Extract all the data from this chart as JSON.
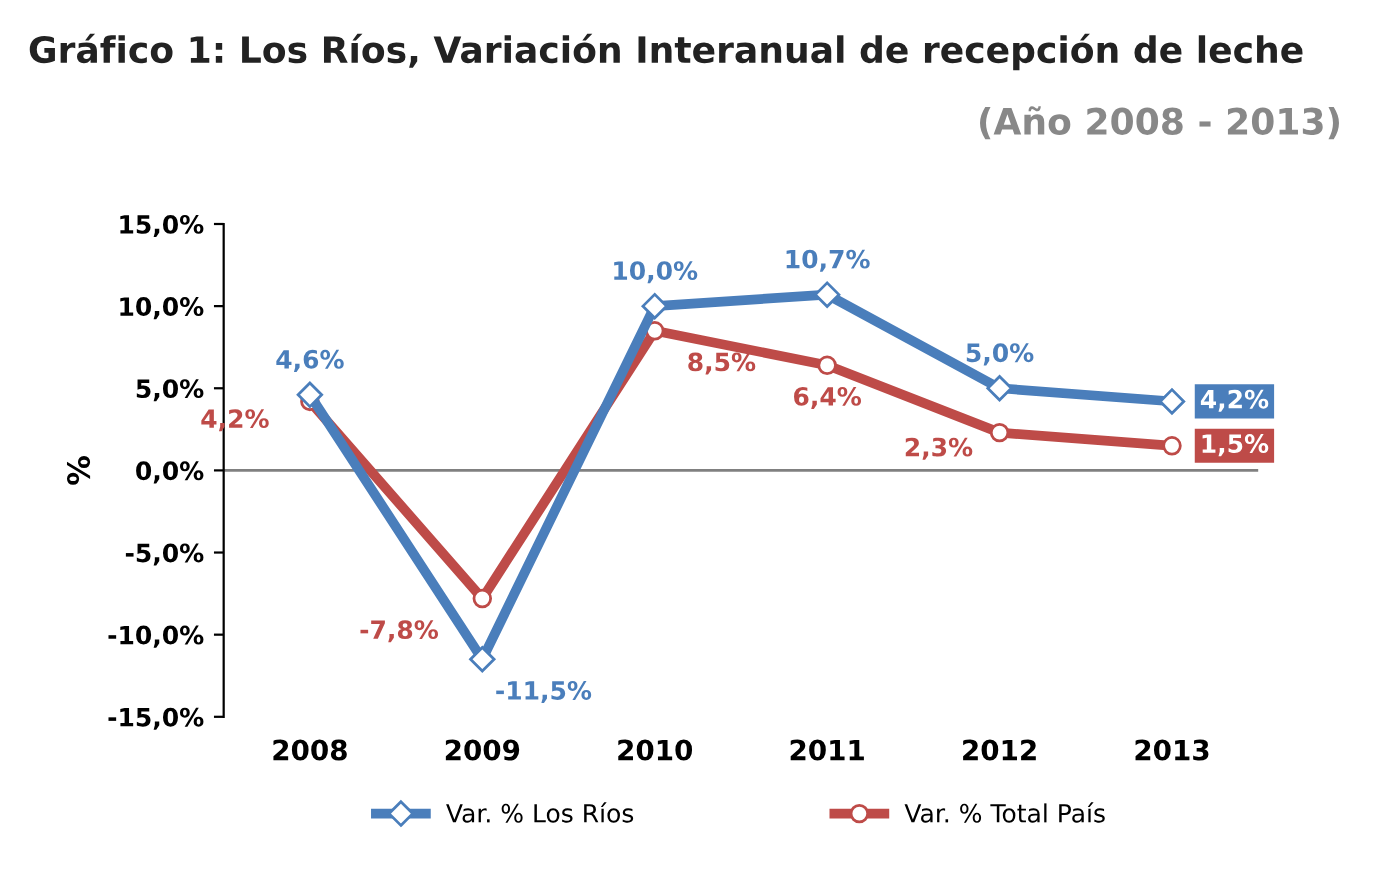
{
  "chart_data": {
    "type": "line",
    "title": "Gráfico 1: Los Ríos, Variación Interanual de recepción de leche",
    "subtitle": "(Año 2008 - 2013)",
    "ylabel": "%",
    "categories": [
      "2008",
      "2009",
      "2010",
      "2011",
      "2012",
      "2013"
    ],
    "series": [
      {
        "name": "Var. % Los Ríos",
        "color": "#4a7ebb",
        "marker": "diamond",
        "values": [
          4.6,
          -11.5,
          10.0,
          10.7,
          5.0,
          4.2
        ],
        "value_labels": [
          "4,6%",
          "-11,5%",
          "10,0%",
          "10,7%",
          "5,0%",
          "4,2%"
        ]
      },
      {
        "name": "Var. % Total País",
        "color": "#be4b48",
        "marker": "circle",
        "values": [
          4.2,
          -7.8,
          8.5,
          6.4,
          2.3,
          1.5
        ],
        "value_labels": [
          "4,2%",
          "-7,8%",
          "8,5%",
          "6,4%",
          "2,3%",
          "1,5%"
        ]
      }
    ],
    "ylim": [
      -15,
      15
    ],
    "yticks": [
      {
        "value": -15,
        "label": "-15,0%"
      },
      {
        "value": -10,
        "label": "-10,0%"
      },
      {
        "value": -5,
        "label": "-5,0%"
      },
      {
        "value": 0,
        "label": "0,0%"
      },
      {
        "value": 5,
        "label": "5,0%"
      },
      {
        "value": 10,
        "label": "10,0%"
      },
      {
        "value": 15,
        "label": "15,0%"
      }
    ],
    "ref_lines": [
      {
        "axis": "y",
        "value": 0,
        "label": null,
        "color": "#808080"
      }
    ],
    "grid": false,
    "legend": "bottom",
    "line_style": "solid"
  }
}
